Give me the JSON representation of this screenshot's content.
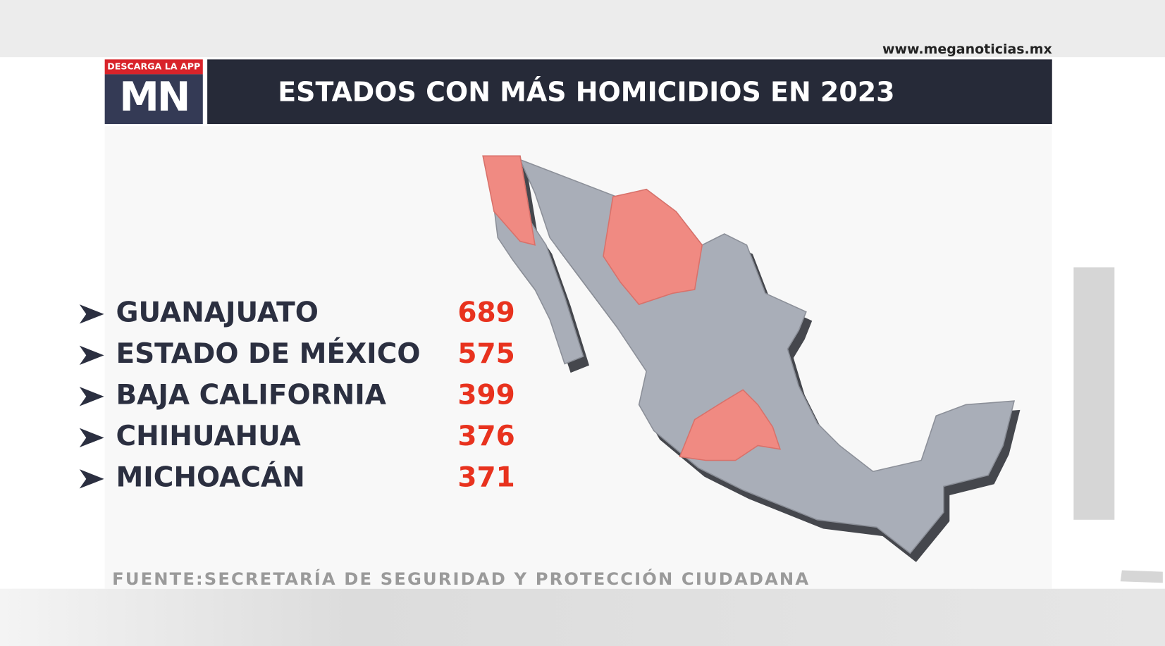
{
  "header": {
    "url": "www.meganoticias.mx",
    "badge": "DESCARGA LA APP",
    "logo": "MN",
    "title": "ESTADOS CON MÁS HOMICIDIOS EN 2023"
  },
  "list": {
    "items": [
      {
        "name": "GUANAJUATO",
        "value": 689
      },
      {
        "name": "ESTADO DE MÉXICO",
        "value": 575
      },
      {
        "name": "BAJA CALIFORNIA",
        "value": 399
      },
      {
        "name": "CHIHUAHUA",
        "value": 376
      },
      {
        "name": "MICHOACÁN",
        "value": 371
      }
    ]
  },
  "footer": {
    "source": "FUENTE:SECRETARÍA DE SEGURIDAD Y PROTECCIÓN CIUDADANA"
  }
}
